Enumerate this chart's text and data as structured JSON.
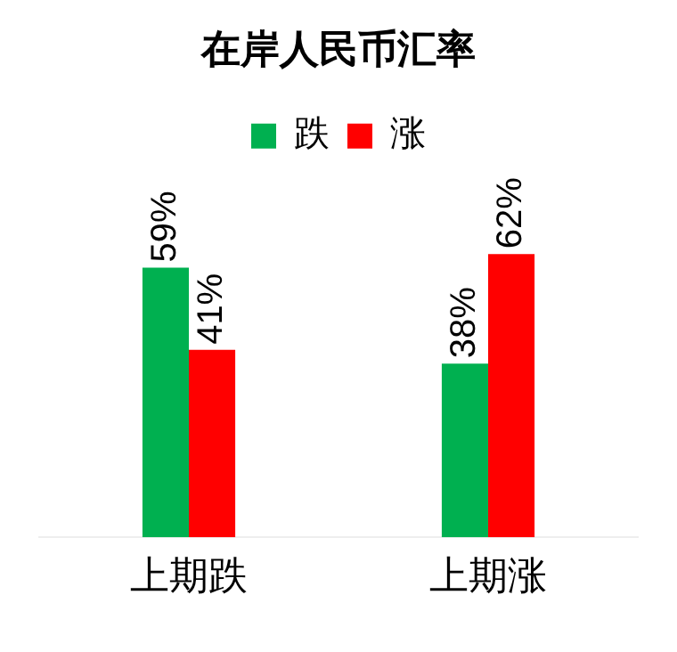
{
  "chart_data": {
    "type": "bar",
    "title": "在岸人民币汇率",
    "categories": [
      "上期跌",
      "上期涨"
    ],
    "series": [
      {
        "name": "跌",
        "color": "#00b050",
        "values": [
          59,
          38
        ],
        "value_labels": [
          "59%",
          "38%"
        ]
      },
      {
        "name": "涨",
        "color": "#ff0000",
        "values": [
          41,
          62
        ],
        "value_labels": [
          "41%",
          "62%"
        ]
      }
    ],
    "tick_labels": "x",
    "legend": "top",
    "grid": false
  }
}
